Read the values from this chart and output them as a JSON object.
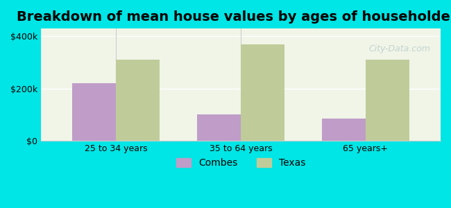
{
  "title": "Breakdown of mean house values by ages of householders",
  "categories": [
    "25 to 34 years",
    "35 to 64 years",
    "65 years+"
  ],
  "combes_values": [
    220000,
    100000,
    85000
  ],
  "texas_values": [
    310000,
    370000,
    310000
  ],
  "combes_color": "#bf9dc8",
  "texas_color": "#bfcc99",
  "background_outer": "#00e5e5",
  "background_inner": "#f0f5e8",
  "yticks": [
    0,
    200000,
    400000
  ],
  "ytick_labels": [
    "$0",
    "$200k",
    "$400k"
  ],
  "ylim": [
    0,
    430000
  ],
  "legend_combes": "Combes",
  "legend_texas": "Texas",
  "bar_width": 0.35,
  "title_fontsize": 14,
  "watermark_text": "City-Data.com"
}
